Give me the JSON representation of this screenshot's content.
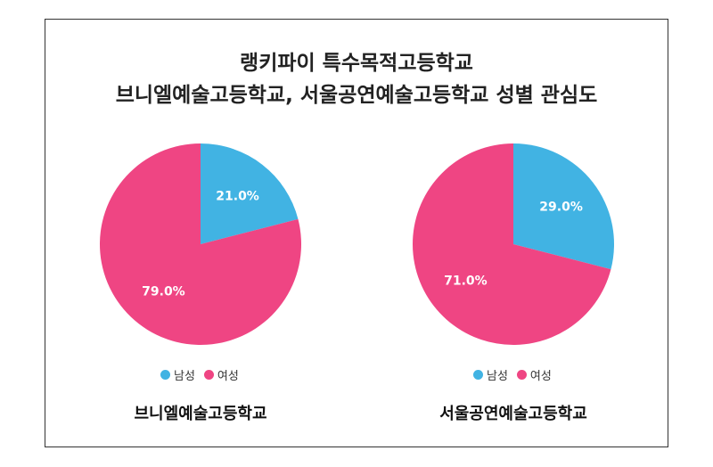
{
  "title_line1": "랭키파이 특수목적고등학교",
  "title_line2": "브니엘예술고등학교, 서울공연예술고등학교 성별 관심도",
  "colors": {
    "male": "#41b3e3",
    "female": "#ef4583"
  },
  "chart_data": [
    {
      "type": "pie",
      "title": "브니엘예술고등학교",
      "categories": [
        "남성",
        "여성"
      ],
      "values": [
        21.0,
        79.0
      ],
      "value_labels": [
        "21.0%",
        "79.0%"
      ],
      "legend": [
        "남성",
        "여성"
      ],
      "legend_position": "bottom"
    },
    {
      "type": "pie",
      "title": "서울공연예술고등학교",
      "categories": [
        "남성",
        "여성"
      ],
      "values": [
        29.0,
        71.0
      ],
      "value_labels": [
        "29.0%",
        "71.0%"
      ],
      "legend": [
        "남성",
        "여성"
      ],
      "legend_position": "bottom"
    }
  ]
}
